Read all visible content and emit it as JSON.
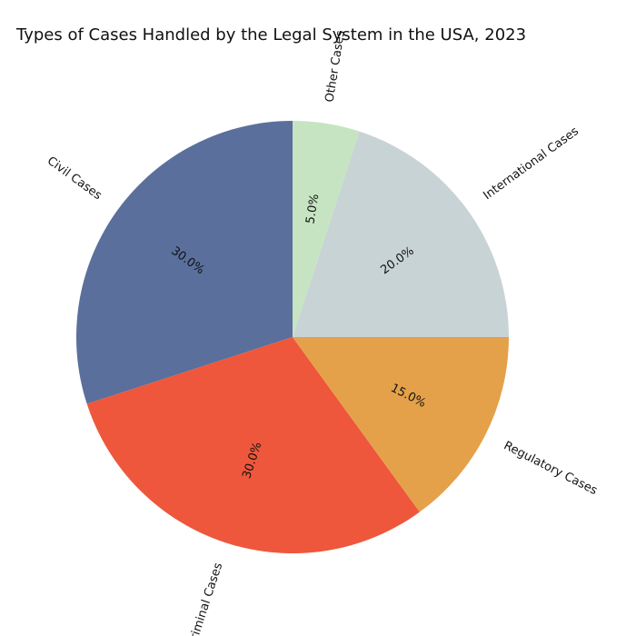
{
  "chart_data": {
    "type": "pie",
    "title": "Types of Cases Handled by the Legal System in the USA, 2023",
    "slices": [
      {
        "label": "Civil Cases",
        "value": 30.0,
        "pct_label": "30.0%",
        "color": "#5A6F9C"
      },
      {
        "label": "Criminal Cases",
        "value": 30.0,
        "pct_label": "30.0%",
        "color": "#EE573B"
      },
      {
        "label": "Regulatory Cases",
        "value": 15.0,
        "pct_label": "15.0%",
        "color": "#E4A14A"
      },
      {
        "label": "International Cases",
        "value": 20.0,
        "pct_label": "20.0%",
        "color": "#C8D3D6"
      },
      {
        "label": "Other Cases",
        "value": 5.0,
        "pct_label": "5.0%",
        "color": "#C6E4C1"
      }
    ],
    "start_angle_deg": 90,
    "direction": "counterclockwise",
    "legend": "none"
  }
}
